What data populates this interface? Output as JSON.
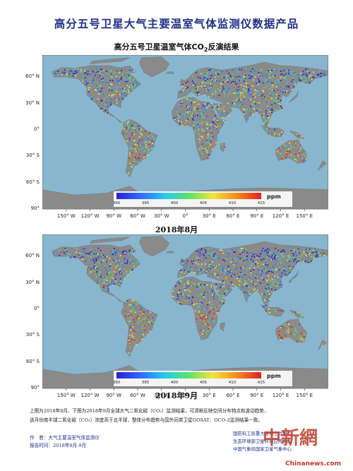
{
  "header": {
    "title": "高分五号卫星大气主要温室气体监测仪数据产品",
    "subtitle_main": "高分五号卫星温室气体CO",
    "subtitle_sub": "2",
    "subtitle_end": "反演结果"
  },
  "maps": [
    {
      "caption": "2018年8月"
    },
    {
      "caption": "2018年9月"
    }
  ],
  "axes": {
    "lon_ticks": [
      "150° W",
      "120° W",
      "90° W",
      "60° W",
      "30° W",
      "0°",
      "30° E",
      "60° E",
      "90° E",
      "120° E",
      "150° E"
    ],
    "lat_ticks": [
      "60° N",
      "30° N",
      "0°",
      "30° S",
      "60° S",
      "90°"
    ]
  },
  "colorbar": {
    "ticks": [
      "390",
      "395",
      "400",
      "405",
      "410",
      "415"
    ],
    "unit": "ppm",
    "colors": [
      "#2a1fd6",
      "#2f6bff",
      "#29c8ef",
      "#5be36a",
      "#f3e33a",
      "#f28a1e",
      "#e02020"
    ]
  },
  "palette": {
    "ocean": "#89b6cf",
    "land": "#8a8a8a",
    "title_color": "#1f2f8a"
  },
  "description": {
    "line1": "上图为2018年8月、下图为2018年9月全球大气二氧化碳（CO₂）监测结果，可清晰反映空间分布特点和波动趋势，",
    "line2": "该月份南半球二氧化碳（CO₂）浓度高于北半球，整体分布趋势与国外同类卫星GOSAT、OCO-2监测结果一致。"
  },
  "footer": {
    "author": "作　者：大气主要温室气体监测仪",
    "date": "报告时间：2018年8月-9月",
    "org1": "国防科工局重大专项工程中心",
    "org2": "生态环境部卫星环境应用中心",
    "org3": "中国气象局国家卫星气象中心"
  },
  "watermark": {
    "text": "中新網",
    "site": "Chinanews.com"
  }
}
